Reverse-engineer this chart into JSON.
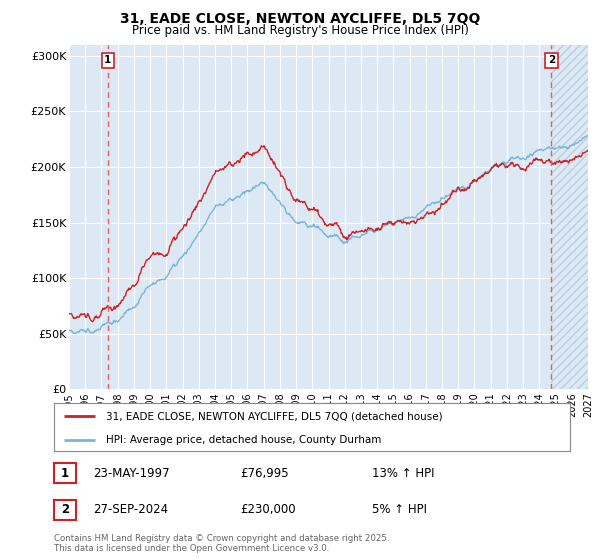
{
  "title_line1": "31, EADE CLOSE, NEWTON AYCLIFFE, DL5 7QQ",
  "title_line2": "Price paid vs. HM Land Registry's House Price Index (HPI)",
  "ylim": [
    0,
    310000
  ],
  "yticks": [
    0,
    50000,
    100000,
    150000,
    200000,
    250000,
    300000
  ],
  "ytick_labels": [
    "£0",
    "£50K",
    "£100K",
    "£150K",
    "£200K",
    "£250K",
    "£300K"
  ],
  "hpi_color": "#7ab4d8",
  "price_color": "#cc2222",
  "sale1_x": 1997.39,
  "sale1_price": 76995,
  "sale2_x": 2024.74,
  "sale2_price": 230000,
  "legend_line1": "31, EADE CLOSE, NEWTON AYCLIFFE, DL5 7QQ (detached house)",
  "legend_line2": "HPI: Average price, detached house, County Durham",
  "ann1_date": "23-MAY-1997",
  "ann1_price": "£76,995",
  "ann1_hpi": "13% ↑ HPI",
  "ann2_date": "27-SEP-2024",
  "ann2_price": "£230,000",
  "ann2_hpi": "5% ↑ HPI",
  "copyright": "Contains HM Land Registry data © Crown copyright and database right 2025.\nThis data is licensed under the Open Government Licence v3.0.",
  "bg_color": "#ffffff",
  "plot_bg_color": "#dce9f5",
  "grid_color": "#ffffff",
  "vline_color": "#e06060",
  "hatch_color": "#c8d8e8",
  "xmin": 1995,
  "xmax": 2027
}
